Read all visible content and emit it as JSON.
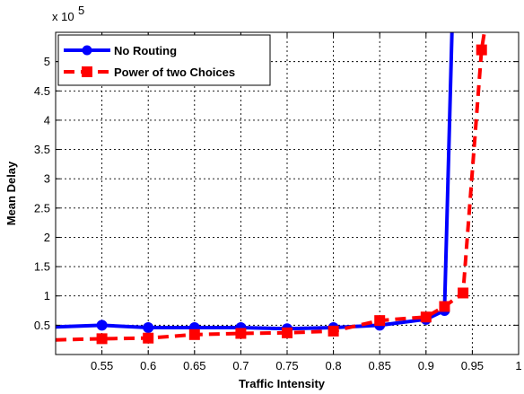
{
  "chart_data": {
    "type": "line",
    "xlabel": "Traffic Intensity",
    "ylabel": "Mean Delay",
    "y_multiplier": {
      "base": "x 10",
      "exponent": "5"
    },
    "xlim": [
      0.5,
      1.0
    ],
    "ylim": [
      0,
      5.5
    ],
    "x_ticks": [
      0.55,
      0.6,
      0.65,
      0.7,
      0.75,
      0.8,
      0.85,
      0.9,
      0.95,
      1
    ],
    "x_tick_labels": [
      "0.55",
      "0.6",
      "0.65",
      "0.7",
      "0.75",
      "0.8",
      "0.85",
      "0.9",
      "0.95",
      "1"
    ],
    "y_ticks": [
      0.5,
      1,
      1.5,
      2,
      2.5,
      3,
      3.5,
      4,
      4.5,
      5
    ],
    "y_tick_labels": [
      "0.5",
      "1",
      "1.5",
      "2",
      "2.5",
      "3",
      "3.5",
      "4",
      "4.5",
      "5"
    ],
    "grid": true,
    "legend_position": "top-left",
    "series": [
      {
        "name": "No Routing",
        "color": "#0000ff",
        "line_style": "solid",
        "marker": "circle",
        "x": [
          0.5,
          0.55,
          0.6,
          0.65,
          0.7,
          0.75,
          0.8,
          0.85,
          0.9,
          0.92,
          0.928
        ],
        "y": [
          0.47,
          0.5,
          0.46,
          0.46,
          0.46,
          0.44,
          0.46,
          0.5,
          0.6,
          0.75,
          5.5
        ],
        "marker_x": [
          0.55,
          0.6,
          0.65,
          0.7,
          0.75,
          0.8,
          0.85,
          0.9,
          0.92
        ],
        "marker_y": [
          0.5,
          0.46,
          0.46,
          0.46,
          0.44,
          0.46,
          0.5,
          0.6,
          0.75
        ]
      },
      {
        "name": "Power of two Choices",
        "color": "#ff0000",
        "line_style": "dashed",
        "marker": "square",
        "x": [
          0.5,
          0.55,
          0.6,
          0.65,
          0.7,
          0.75,
          0.8,
          0.85,
          0.9,
          0.92,
          0.94,
          0.96,
          0.963
        ],
        "y": [
          0.25,
          0.27,
          0.28,
          0.34,
          0.36,
          0.37,
          0.4,
          0.58,
          0.64,
          0.82,
          1.05,
          5.2,
          5.5
        ],
        "marker_x": [
          0.55,
          0.6,
          0.65,
          0.7,
          0.75,
          0.8,
          0.85,
          0.9,
          0.92,
          0.94,
          0.96
        ],
        "marker_y": [
          0.27,
          0.28,
          0.34,
          0.36,
          0.37,
          0.4,
          0.58,
          0.64,
          0.82,
          1.05,
          5.2
        ]
      }
    ]
  }
}
